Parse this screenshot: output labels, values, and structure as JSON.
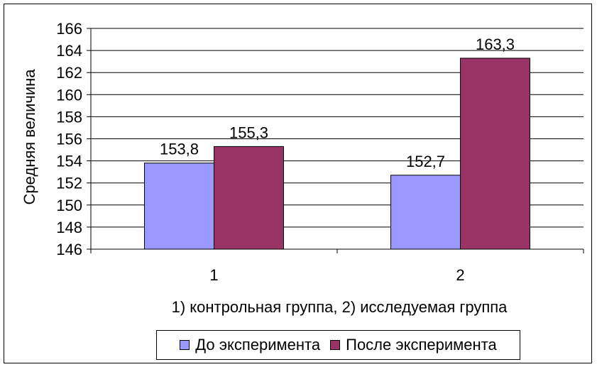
{
  "chart_data": {
    "type": "bar",
    "title": "",
    "xlabel": "1) контрольная группа, 2) исследуемая группа",
    "ylabel": "Средняя величина",
    "categories": [
      "1",
      "2"
    ],
    "series": [
      {
        "name": "До эксперимента",
        "values": [
          153.8,
          152.7
        ],
        "value_labels": [
          "153,8",
          "152,7"
        ],
        "color": "#9999ff"
      },
      {
        "name": "После эксперимента",
        "values": [
          155.3,
          163.3
        ],
        "value_labels": [
          "155,3",
          "163,3"
        ],
        "color": "#993366"
      }
    ],
    "ylim": [
      146,
      166
    ],
    "yticks": [
      146,
      148,
      150,
      152,
      154,
      156,
      158,
      160,
      162,
      164,
      166
    ],
    "grid": true,
    "legend": "bottom"
  }
}
